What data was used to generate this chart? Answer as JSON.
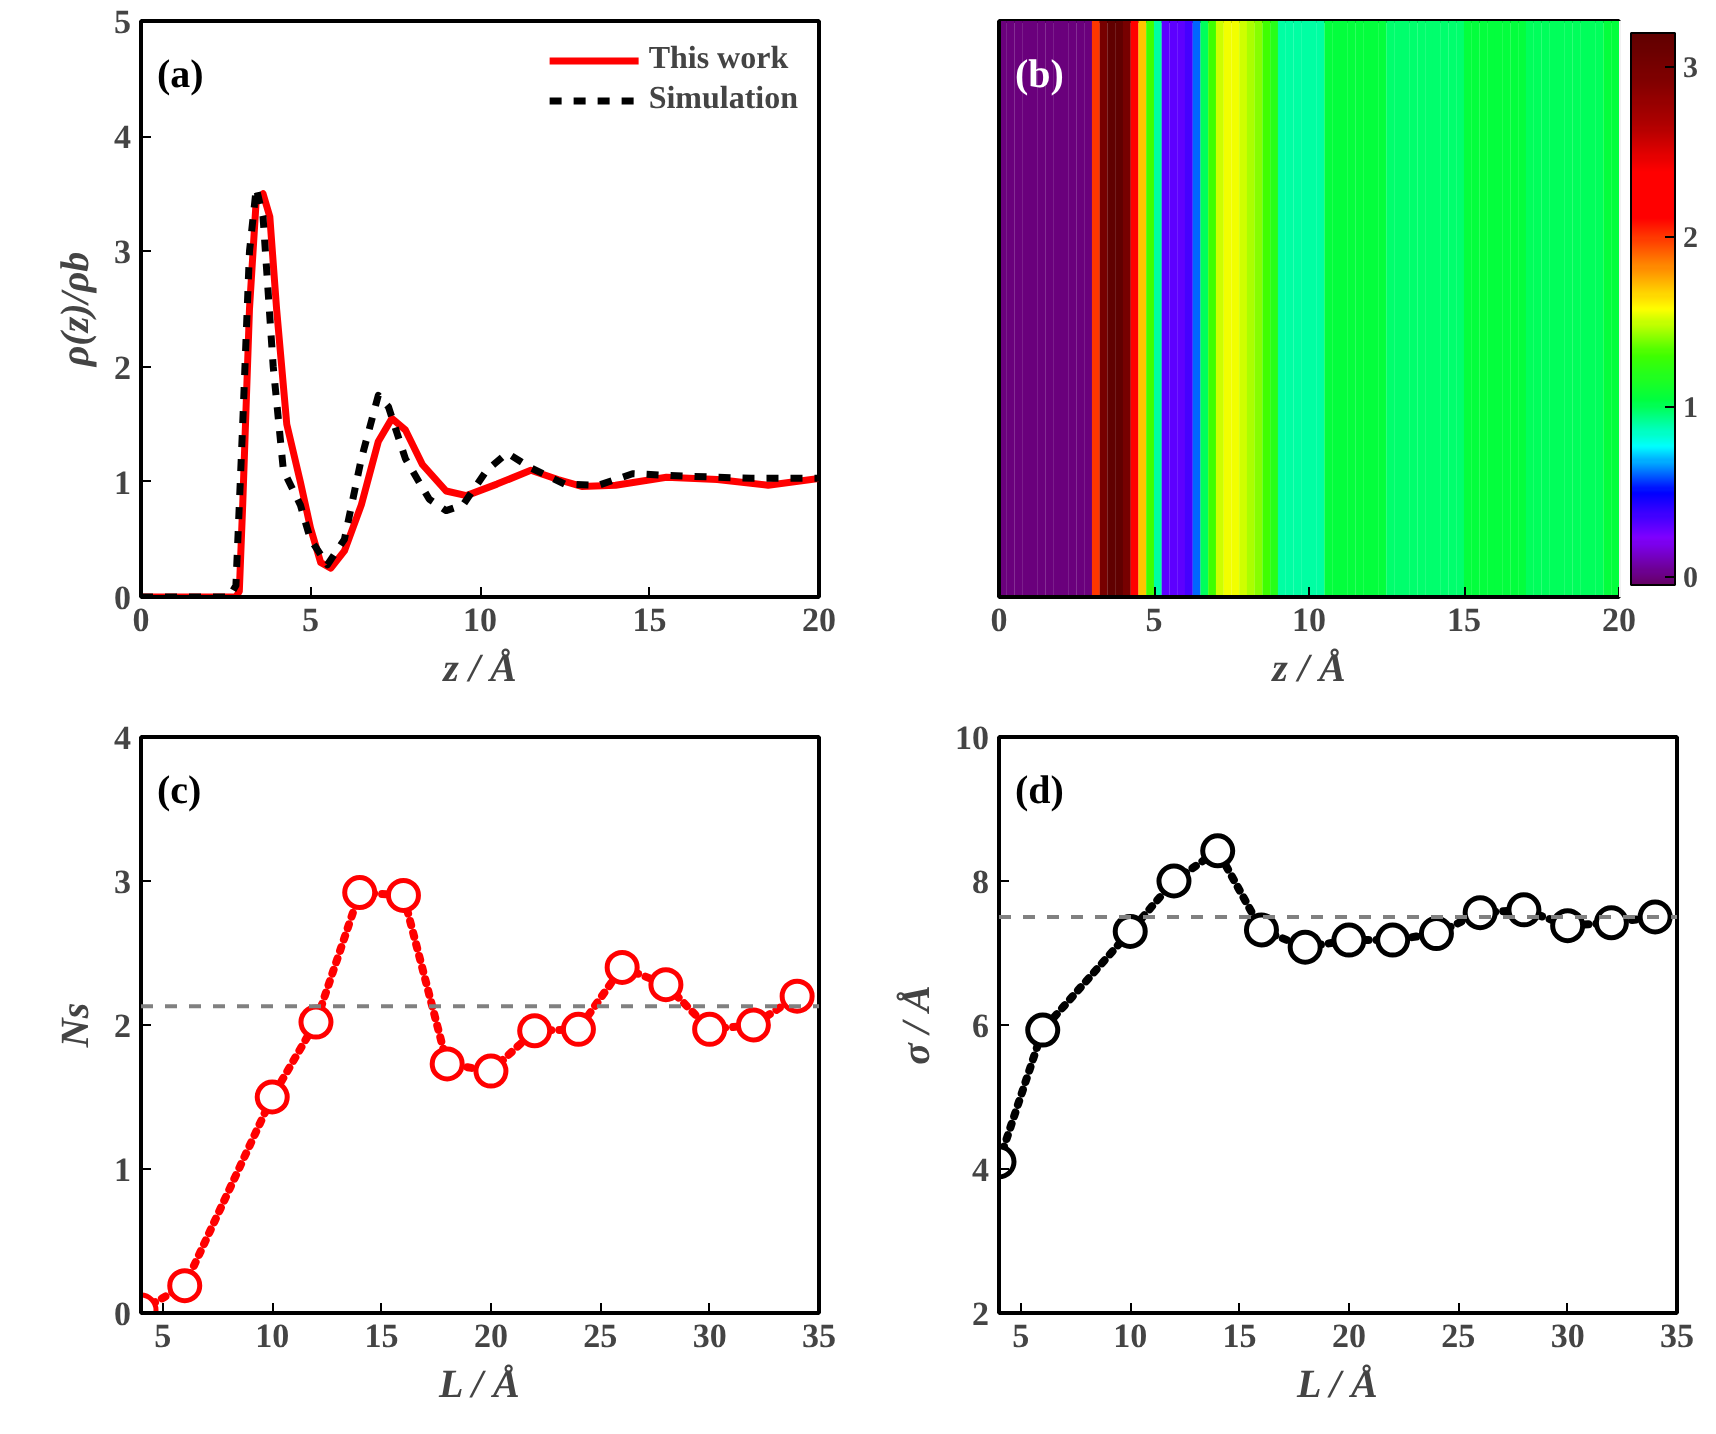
{
  "chart_data": [
    {
      "type": "line",
      "xlabel": "z / Å",
      "ylabel": "ρ(z)/ρb",
      "annotations": [
        "(a)"
      ],
      "xlim": [
        0,
        20
      ],
      "xticks": [
        0,
        5,
        10,
        15,
        20
      ],
      "ylim": [
        0,
        5
      ],
      "yticks": [
        0,
        1,
        2,
        3,
        4,
        5
      ],
      "grid": false,
      "legend": "top right",
      "series": [
        {
          "name": "This work",
          "color": "#ff0000",
          "line_style": "solid",
          "x": [
            0,
            2.8,
            2.9,
            3.0,
            3.2,
            3.4,
            3.6,
            3.8,
            4.0,
            4.3,
            4.7,
            5.0,
            5.3,
            5.6,
            6.0,
            6.5,
            7.0,
            7.4,
            7.8,
            8.3,
            9.0,
            9.6,
            10.5,
            11.5,
            12.3,
            13.0,
            14.0,
            15.5,
            17.0,
            18.5,
            20.0
          ],
          "values": [
            0,
            0,
            0.05,
            0.8,
            2.5,
            3.45,
            3.5,
            3.3,
            2.5,
            1.5,
            1.0,
            0.6,
            0.3,
            0.25,
            0.4,
            0.8,
            1.35,
            1.55,
            1.45,
            1.15,
            0.92,
            0.88,
            0.98,
            1.1,
            1.02,
            0.96,
            0.97,
            1.04,
            1.02,
            0.97,
            1.03
          ]
        },
        {
          "name": "Simulation",
          "color": "#000000",
          "line_style": "dashed",
          "x": [
            0,
            2.6,
            2.8,
            3.0,
            3.2,
            3.4,
            3.6,
            3.9,
            4.2,
            4.7,
            5.0,
            5.5,
            6.0,
            6.5,
            7.0,
            7.3,
            7.8,
            8.5,
            9.0,
            9.5,
            10.2,
            10.8,
            11.5,
            12.5,
            13.5,
            14.5,
            16.0,
            18.0,
            20.0
          ],
          "values": [
            0,
            0,
            0.1,
            1.5,
            3.0,
            3.55,
            3.3,
            2.0,
            1.1,
            0.8,
            0.5,
            0.28,
            0.5,
            1.2,
            1.75,
            1.65,
            1.2,
            0.85,
            0.75,
            0.8,
            1.1,
            1.25,
            1.12,
            0.98,
            0.97,
            1.07,
            1.05,
            1.03,
            1.03
          ]
        }
      ]
    },
    {
      "type": "heatmap",
      "xlabel": "z / Å",
      "annotations": [
        "(b)"
      ],
      "xlim": [
        0,
        20
      ],
      "xticks": [
        0,
        5,
        10,
        15,
        20
      ],
      "tick_labels": "x",
      "y_categories": [
        null
      ],
      "clim": [
        -0.05,
        3.2
      ],
      "cticks": [
        0,
        1,
        2,
        3
      ],
      "colors": [
        "#660066",
        "#7f00ff",
        "#0000ff",
        "#00ffff",
        "#00ff40",
        "#40ff00",
        "#ffff00",
        "#ff8000",
        "#ff0000",
        "#ff0000",
        "#b00000",
        "#800000",
        "#600000"
      ],
      "x": [
        0.125,
        0.375,
        0.625,
        0.875,
        1.125,
        1.375,
        1.625,
        1.875,
        2.125,
        2.375,
        2.625,
        2.875,
        3.125,
        3.375,
        3.625,
        3.875,
        4.125,
        4.375,
        4.625,
        4.875,
        5.125,
        5.375,
        5.625,
        5.875,
        6.125,
        6.375,
        6.625,
        6.875,
        7.125,
        7.375,
        7.625,
        7.875,
        8.125,
        8.375,
        8.625,
        8.875,
        9.125,
        9.375,
        9.625,
        9.875,
        10.125,
        10.375,
        10.625,
        10.875,
        11.125,
        11.375,
        11.625,
        11.875,
        12.125,
        12.375,
        12.625,
        12.875,
        13.125,
        13.375,
        13.625,
        13.875,
        14.125,
        14.375,
        14.625,
        14.875,
        15.125,
        15.375,
        15.625,
        15.875,
        16.125,
        16.375,
        16.625,
        16.875,
        17.125,
        17.375,
        17.625,
        17.875,
        18.125,
        18.375,
        18.625,
        18.875,
        19.125,
        19.375,
        19.625,
        19.875
      ],
      "cells": [
        [
          0,
          0,
          0,
          0,
          0,
          0,
          0,
          0,
          0,
          0,
          0,
          0,
          2.0,
          3.0,
          3.2,
          3.2,
          3.0,
          2.2,
          1.7,
          1.3,
          0.9,
          0.3,
          0.3,
          0.3,
          0.35,
          0.6,
          1.0,
          1.3,
          1.5,
          1.55,
          1.55,
          1.5,
          1.45,
          1.4,
          1.3,
          1.2,
          0.9,
          0.9,
          0.9,
          0.9,
          0.9,
          0.9,
          1.05,
          1.05,
          1.05,
          1.05,
          1.05,
          1.05,
          1.05,
          1.05,
          0.97,
          0.97,
          0.97,
          0.97,
          0.97,
          0.97,
          0.97,
          0.97,
          0.97,
          0.97,
          1.05,
          1.05,
          1.05,
          1.05,
          1.05,
          1.05,
          1.05,
          1.05,
          1.0,
          1.0,
          1.0,
          1.0,
          1.0,
          1.0,
          1.0,
          1.0,
          1.0,
          1.0,
          1.05,
          1.05
        ]
      ]
    },
    {
      "type": "line",
      "xlabel": "L / Å",
      "ylabel": "Ns",
      "annotations": [
        "(c)"
      ],
      "xlim": [
        4,
        35
      ],
      "xticks": [
        5,
        10,
        15,
        20,
        25,
        30,
        35
      ],
      "ylim": [
        0,
        4
      ],
      "yticks": [
        0,
        1,
        2,
        3,
        4
      ],
      "grid": false,
      "marker": "circle",
      "line_style": "dotted",
      "ref_lines": [
        {
          "axis": "y",
          "value": 2.13,
          "color": "#808080",
          "line_style": "dashed"
        }
      ],
      "x": [
        4,
        6,
        10,
        12,
        14,
        16,
        18,
        20,
        22,
        24,
        26,
        28,
        30,
        32,
        34
      ],
      "series": [
        {
          "color": "#ff0000",
          "values": [
            0.02,
            0.19,
            1.5,
            2.02,
            2.92,
            2.9,
            1.73,
            1.68,
            1.96,
            1.97,
            2.4,
            2.28,
            1.97,
            2.0,
            2.2
          ]
        }
      ]
    },
    {
      "type": "line",
      "xlabel": "L / Å",
      "ylabel": "σ / Å",
      "annotations": [
        "(d)"
      ],
      "xlim": [
        4,
        35
      ],
      "xticks": [
        5,
        10,
        15,
        20,
        25,
        30,
        35
      ],
      "ylim": [
        2,
        10
      ],
      "yticks": [
        2,
        4,
        6,
        8,
        10
      ],
      "grid": false,
      "marker": "circle",
      "line_style": "dotted",
      "ref_lines": [
        {
          "axis": "y",
          "value": 7.5,
          "color": "#808080",
          "line_style": "dashed"
        }
      ],
      "x": [
        4,
        6,
        10,
        12,
        14,
        16,
        18,
        20,
        22,
        24,
        26,
        28,
        30,
        32,
        34
      ],
      "series": [
        {
          "color": "#000000",
          "values": [
            4.1,
            5.93,
            7.3,
            8.0,
            8.42,
            7.32,
            7.08,
            7.18,
            7.18,
            7.27,
            7.56,
            7.6,
            7.38,
            7.42,
            7.5
          ]
        }
      ]
    }
  ]
}
